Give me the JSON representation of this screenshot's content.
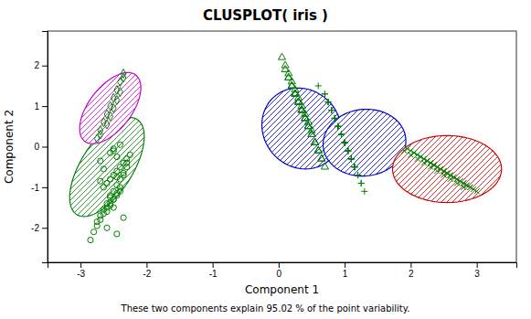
{
  "chart_data": {
    "type": "scatter",
    "title": "CLUSPLOT( iris )",
    "subtitle": "These two components explain 95.02 % of the point variability.",
    "x_label": "Component 1",
    "y_label": "Component 2",
    "xlim": [
      -3.5,
      3.6
    ],
    "ylim": [
      -2.85,
      2.85
    ],
    "xticks": [
      -3,
      -2,
      -1,
      0,
      1,
      2,
      3
    ],
    "yticks": [
      -2,
      -1,
      0,
      1,
      2
    ],
    "grid": false,
    "ellipses": [
      {
        "cx": -2.6,
        "cy": -0.5,
        "w": 0.85,
        "h": 2.55,
        "angle": -18,
        "color": "#008000"
      },
      {
        "cx": -2.55,
        "cy": 0.95,
        "w": 0.72,
        "h": 1.85,
        "angle": -20,
        "color": "#cc00cc"
      },
      {
        "cx": 0.35,
        "cy": 0.45,
        "w": 1.2,
        "h": 2.0,
        "angle": 5,
        "color": "#0000cc"
      },
      {
        "cx": 1.3,
        "cy": 0.1,
        "w": 1.25,
        "h": 1.65,
        "angle": -5,
        "color": "#0000cc"
      },
      {
        "cx": 2.55,
        "cy": -0.55,
        "w": 1.65,
        "h": 1.65,
        "angle": 0,
        "color": "#cc0000"
      }
    ],
    "series": [
      {
        "marker": "circle",
        "color": "#008000",
        "x": [
          -2.85,
          -2.8,
          -2.75,
          -2.7,
          -2.65,
          -2.6,
          -2.55,
          -2.5,
          -2.45,
          -2.4,
          -2.75,
          -2.7,
          -2.65,
          -2.6,
          -2.55,
          -2.5,
          -2.45,
          -2.4,
          -2.35,
          -2.3,
          -2.65,
          -2.6,
          -2.55,
          -2.5,
          -2.45,
          -2.4,
          -2.35,
          -2.3,
          -2.25,
          -2.5,
          -2.6,
          -2.55,
          -2.5,
          -2.45,
          -2.4,
          -2.7,
          -2.35,
          -2.65,
          -2.3,
          -2.45,
          -2.55,
          -2.5,
          -2.4,
          -2.6,
          -2.45,
          -2.35,
          -2.7,
          -2.5,
          -2.45,
          -2.55
        ],
        "values": [
          -2.3,
          -2.1,
          -1.95,
          -1.8,
          -1.65,
          -1.5,
          -1.4,
          -1.3,
          -1.2,
          -1.1,
          -1.85,
          -1.7,
          -1.55,
          -1.4,
          -1.25,
          -1.1,
          -0.95,
          -0.8,
          -0.65,
          -0.5,
          -1.0,
          -0.9,
          -0.8,
          -0.7,
          -0.6,
          -0.5,
          -0.4,
          -0.3,
          -0.2,
          -0.1,
          -1.6,
          -1.45,
          -1.3,
          -1.15,
          -1.0,
          -0.85,
          -0.7,
          -0.55,
          -0.4,
          -0.25,
          -0.15,
          -0.05,
          0.05,
          -2.0,
          -2.15,
          -1.75,
          -0.35,
          -1.5,
          -0.75,
          -1.2
        ]
      },
      {
        "marker": "diamond",
        "color": "#008000",
        "x": [
          -2.75,
          -2.7,
          -2.65,
          -2.6,
          -2.55,
          -2.5,
          -2.45,
          -2.4,
          -2.35,
          -2.7,
          -2.6,
          -2.55,
          -2.5,
          -2.45,
          -2.4,
          -2.35
        ],
        "values": [
          0.2,
          0.4,
          0.6,
          0.8,
          1.0,
          1.2,
          1.4,
          1.6,
          1.8,
          0.3,
          0.55,
          0.75,
          0.95,
          1.15,
          1.35,
          1.7
        ]
      },
      {
        "marker": "triangle",
        "color": "#008000",
        "x": [
          0.05,
          0.1,
          0.15,
          0.2,
          0.25,
          0.3,
          0.35,
          0.4,
          0.45,
          0.5,
          0.1,
          0.15,
          0.2,
          0.25,
          0.3,
          0.35,
          0.4,
          0.45,
          0.5,
          0.55,
          0.15,
          0.2,
          0.25,
          0.3,
          0.35,
          0.4,
          0.45,
          0.5,
          0.55,
          0.6,
          0.2,
          0.25,
          0.3,
          0.35,
          0.4,
          0.45,
          0.5,
          0.55,
          0.6,
          0.65,
          0.25,
          0.3,
          0.35,
          0.4,
          0.45,
          0.5,
          0.55,
          0.6,
          0.65,
          0.7
        ],
        "values": [
          2.2,
          2.0,
          1.8,
          1.6,
          1.4,
          1.2,
          1.0,
          0.8,
          0.6,
          0.4,
          1.9,
          1.7,
          1.5,
          1.3,
          1.1,
          0.9,
          0.7,
          0.5,
          0.3,
          0.1,
          1.7,
          1.5,
          1.3,
          1.1,
          0.9,
          0.7,
          0.5,
          0.3,
          0.1,
          -0.1,
          1.5,
          1.3,
          1.1,
          0.9,
          0.7,
          0.5,
          0.3,
          0.1,
          -0.1,
          -0.3,
          1.3,
          1.1,
          0.9,
          0.7,
          0.5,
          0.3,
          0.1,
          -0.1,
          -0.3,
          -0.5
        ]
      },
      {
        "marker": "plus",
        "color": "#008000",
        "x": [
          0.6,
          0.7,
          0.75,
          0.8,
          0.85,
          0.9,
          0.95,
          1.0,
          1.05,
          1.1,
          0.7,
          0.75,
          0.8,
          0.85,
          0.9,
          0.95,
          1.0,
          1.05,
          1.1,
          1.15,
          0.75,
          0.8,
          0.85,
          0.9,
          0.95,
          1.0,
          1.05,
          1.1,
          1.15,
          1.2,
          0.8,
          0.85,
          0.9,
          0.95,
          1.0,
          1.05,
          1.1,
          1.15,
          1.2,
          1.25,
          0.85,
          0.9,
          0.95,
          1.0,
          1.05,
          1.1,
          1.15,
          1.2,
          1.25,
          1.3
        ],
        "values": [
          1.5,
          1.3,
          1.1,
          0.9,
          0.7,
          0.5,
          0.3,
          0.1,
          -0.1,
          -0.3,
          1.3,
          1.1,
          0.9,
          0.7,
          0.5,
          0.3,
          0.1,
          -0.1,
          -0.3,
          -0.5,
          1.1,
          0.9,
          0.7,
          0.5,
          0.3,
          0.1,
          -0.1,
          -0.3,
          -0.5,
          -0.7,
          0.9,
          0.7,
          0.5,
          0.3,
          0.1,
          -0.1,
          -0.3,
          -0.5,
          -0.7,
          -0.9,
          0.7,
          0.5,
          0.3,
          0.1,
          -0.1,
          -0.3,
          -0.5,
          -0.7,
          -0.9,
          -1.1
        ]
      },
      {
        "marker": "x",
        "color": "#008000",
        "x": [
          1.9,
          2.0,
          2.1,
          2.2,
          2.3,
          2.4,
          2.5,
          2.6,
          2.7,
          2.8,
          1.95,
          2.05,
          2.15,
          2.25,
          2.35,
          2.45,
          2.55,
          2.65,
          2.75,
          2.85,
          2.0,
          2.1,
          2.2,
          2.3,
          2.4,
          2.5,
          2.6,
          2.7,
          2.8,
          2.9,
          2.05,
          2.15,
          2.25,
          2.35,
          2.45,
          2.55,
          2.65,
          2.75,
          2.85,
          2.95,
          2.1,
          2.2,
          2.3,
          2.4,
          2.5,
          2.6,
          2.7,
          2.8,
          2.9,
          3.0
        ],
        "values": [
          -0.1,
          -0.2,
          -0.3,
          -0.4,
          -0.5,
          -0.6,
          -0.7,
          -0.8,
          -0.9,
          -1.0,
          -0.05,
          -0.15,
          -0.25,
          -0.35,
          -0.45,
          -0.55,
          -0.65,
          -0.75,
          -0.85,
          -0.95,
          -0.1,
          -0.2,
          -0.3,
          -0.4,
          -0.5,
          -0.6,
          -0.7,
          -0.8,
          -0.9,
          -1.0,
          -0.15,
          -0.25,
          -0.35,
          -0.45,
          -0.55,
          -0.65,
          -0.75,
          -0.85,
          -0.95,
          -1.05,
          -0.2,
          -0.3,
          -0.4,
          -0.5,
          -0.6,
          -0.7,
          -0.8,
          -0.9,
          -1.0,
          -1.1
        ]
      }
    ]
  }
}
